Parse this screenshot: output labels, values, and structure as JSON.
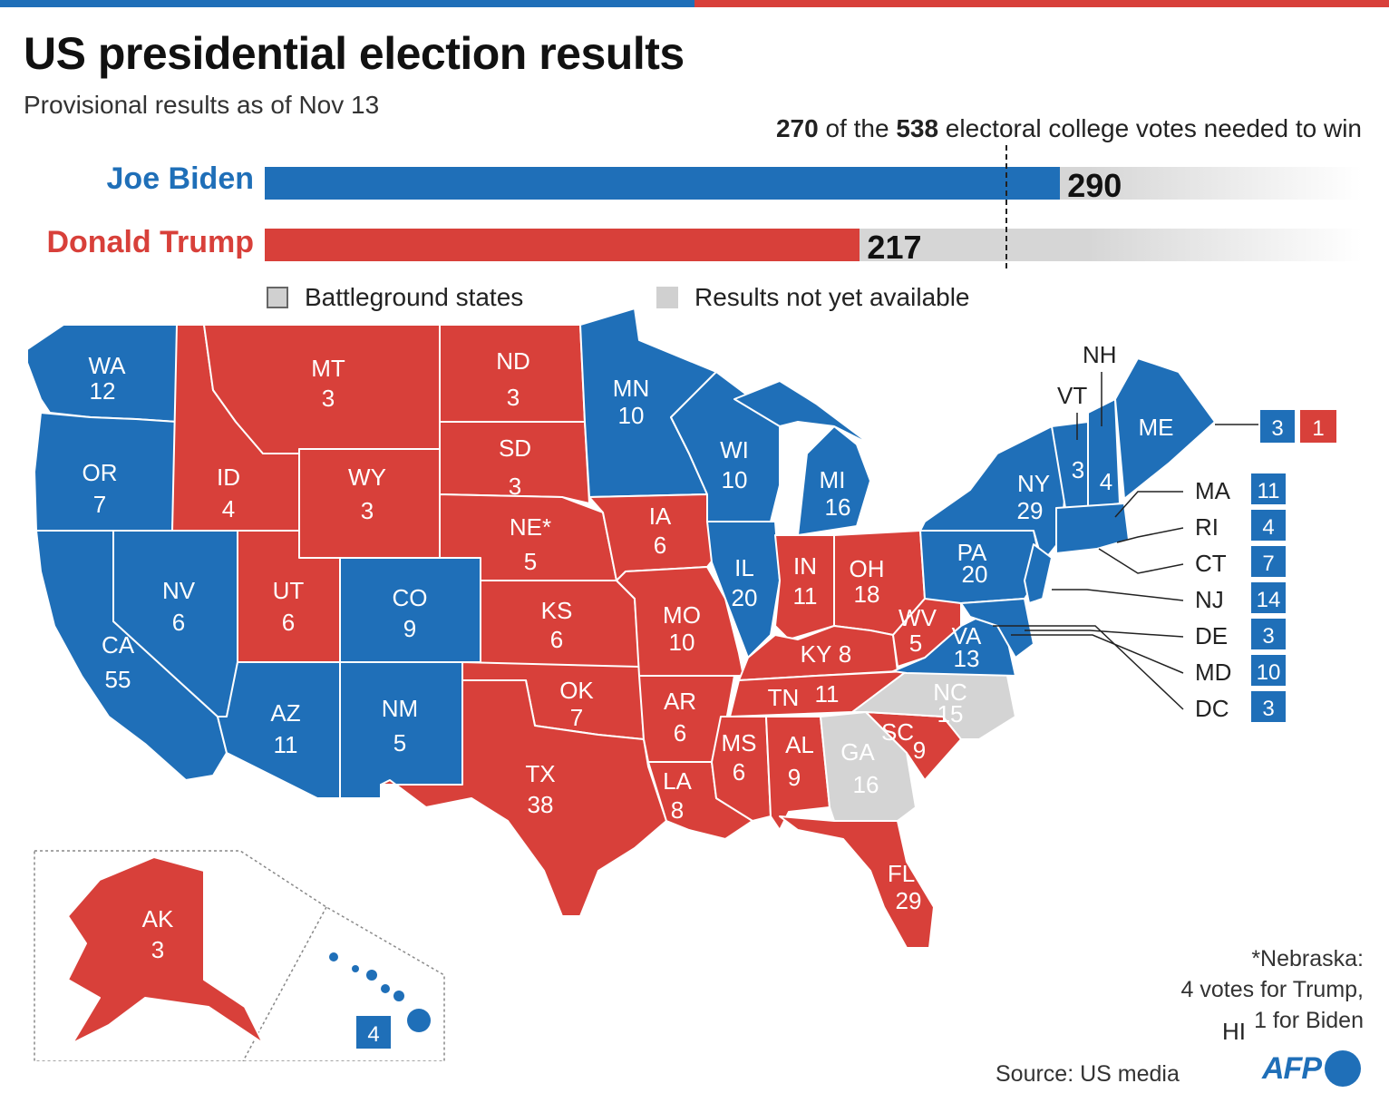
{
  "title": "US presidential election results",
  "subtitle": "Provisional results as of Nov 13",
  "threshold": {
    "needed": "270",
    "total": "538",
    "mid": " of the ",
    "suffix": " electoral college votes needed to win",
    "value": 270
  },
  "candidates": [
    {
      "name": "Joe Biden",
      "votes": 290,
      "votes_label": "290",
      "color": "#1f6fb8"
    },
    {
      "name": "Donald Trump",
      "votes": 217,
      "votes_label": "217",
      "color": "#d8403a"
    }
  ],
  "legend": {
    "battleground": "Battleground states",
    "not_available": "Results not yet available"
  },
  "colors": {
    "biden": "#1f6fb8",
    "trump": "#d8403a",
    "pending": "#d4d4d4"
  },
  "states": [
    {
      "abbr": "WA",
      "votes": "12"
    },
    {
      "abbr": "OR",
      "votes": "7"
    },
    {
      "abbr": "CA",
      "votes": "55"
    },
    {
      "abbr": "NV",
      "votes": "6"
    },
    {
      "abbr": "ID",
      "votes": "4"
    },
    {
      "abbr": "MT",
      "votes": "3"
    },
    {
      "abbr": "WY",
      "votes": "3"
    },
    {
      "abbr": "UT",
      "votes": "6"
    },
    {
      "abbr": "CO",
      "votes": "9"
    },
    {
      "abbr": "AZ",
      "votes": "11"
    },
    {
      "abbr": "NM",
      "votes": "5"
    },
    {
      "abbr": "ND",
      "votes": "3"
    },
    {
      "abbr": "SD",
      "votes": "3"
    },
    {
      "abbr": "NE*",
      "votes": "5"
    },
    {
      "abbr": "KS",
      "votes": "6"
    },
    {
      "abbr": "OK",
      "votes": "7"
    },
    {
      "abbr": "TX",
      "votes": "38"
    },
    {
      "abbr": "MN",
      "votes": "10"
    },
    {
      "abbr": "IA",
      "votes": "6"
    },
    {
      "abbr": "MO",
      "votes": "10"
    },
    {
      "abbr": "AR",
      "votes": "6"
    },
    {
      "abbr": "LA",
      "votes": "8"
    },
    {
      "abbr": "WI",
      "votes": "10"
    },
    {
      "abbr": "IL",
      "votes": "20"
    },
    {
      "abbr": "MI",
      "votes": "16"
    },
    {
      "abbr": "IN",
      "votes": "11"
    },
    {
      "abbr": "OH",
      "votes": "18"
    },
    {
      "abbr": "KY",
      "votes": "8"
    },
    {
      "abbr": "TN",
      "votes": "11"
    },
    {
      "abbr": "MS",
      "votes": "6"
    },
    {
      "abbr": "AL",
      "votes": "9"
    },
    {
      "abbr": "GA",
      "votes": "16"
    },
    {
      "abbr": "FL",
      "votes": "29"
    },
    {
      "abbr": "SC",
      "votes": "9"
    },
    {
      "abbr": "NC",
      "votes": "15"
    },
    {
      "abbr": "VA",
      "votes": "13"
    },
    {
      "abbr": "WV",
      "votes": "5"
    },
    {
      "abbr": "PA",
      "votes": "20"
    },
    {
      "abbr": "NY",
      "votes": "29"
    },
    {
      "abbr": "VT",
      "votes": "3"
    },
    {
      "abbr": "NH",
      "votes": "4"
    },
    {
      "abbr": "ME",
      "votes": "3",
      "votes2": "1"
    },
    {
      "abbr": "AK",
      "votes": "3"
    },
    {
      "abbr": "HI",
      "votes": "4"
    }
  ],
  "callouts": [
    {
      "abbr": "MA",
      "votes": "11"
    },
    {
      "abbr": "RI",
      "votes": "4"
    },
    {
      "abbr": "CT",
      "votes": "7"
    },
    {
      "abbr": "NJ",
      "votes": "14"
    },
    {
      "abbr": "DE",
      "votes": "3"
    },
    {
      "abbr": "MD",
      "votes": "10"
    },
    {
      "abbr": "DC",
      "votes": "3"
    }
  ],
  "note": [
    "*Nebraska:",
    "4 votes for Trump,",
    "1 for Biden"
  ],
  "source": "Source: US media",
  "logo": "AFP"
}
